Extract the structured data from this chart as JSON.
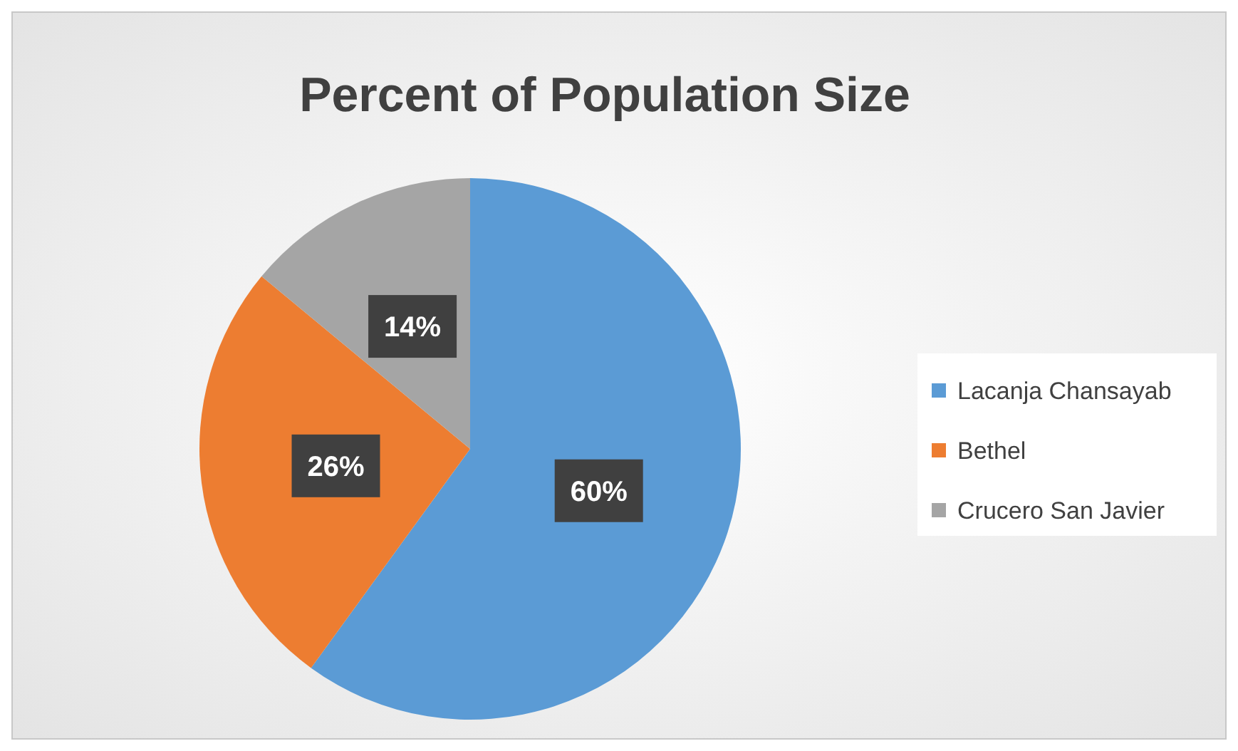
{
  "chart_data": {
    "type": "pie",
    "title": "Percent of Population Size",
    "categories": [
      "Lacanja Chansayab",
      "Bethel",
      "Crucero San Javier"
    ],
    "values": [
      60,
      26,
      14
    ],
    "colors": [
      "#5b9bd5",
      "#ed7d31",
      "#a5a5a5"
    ],
    "value_labels": [
      "60%",
      "26%",
      "14%"
    ],
    "legend": "right"
  }
}
